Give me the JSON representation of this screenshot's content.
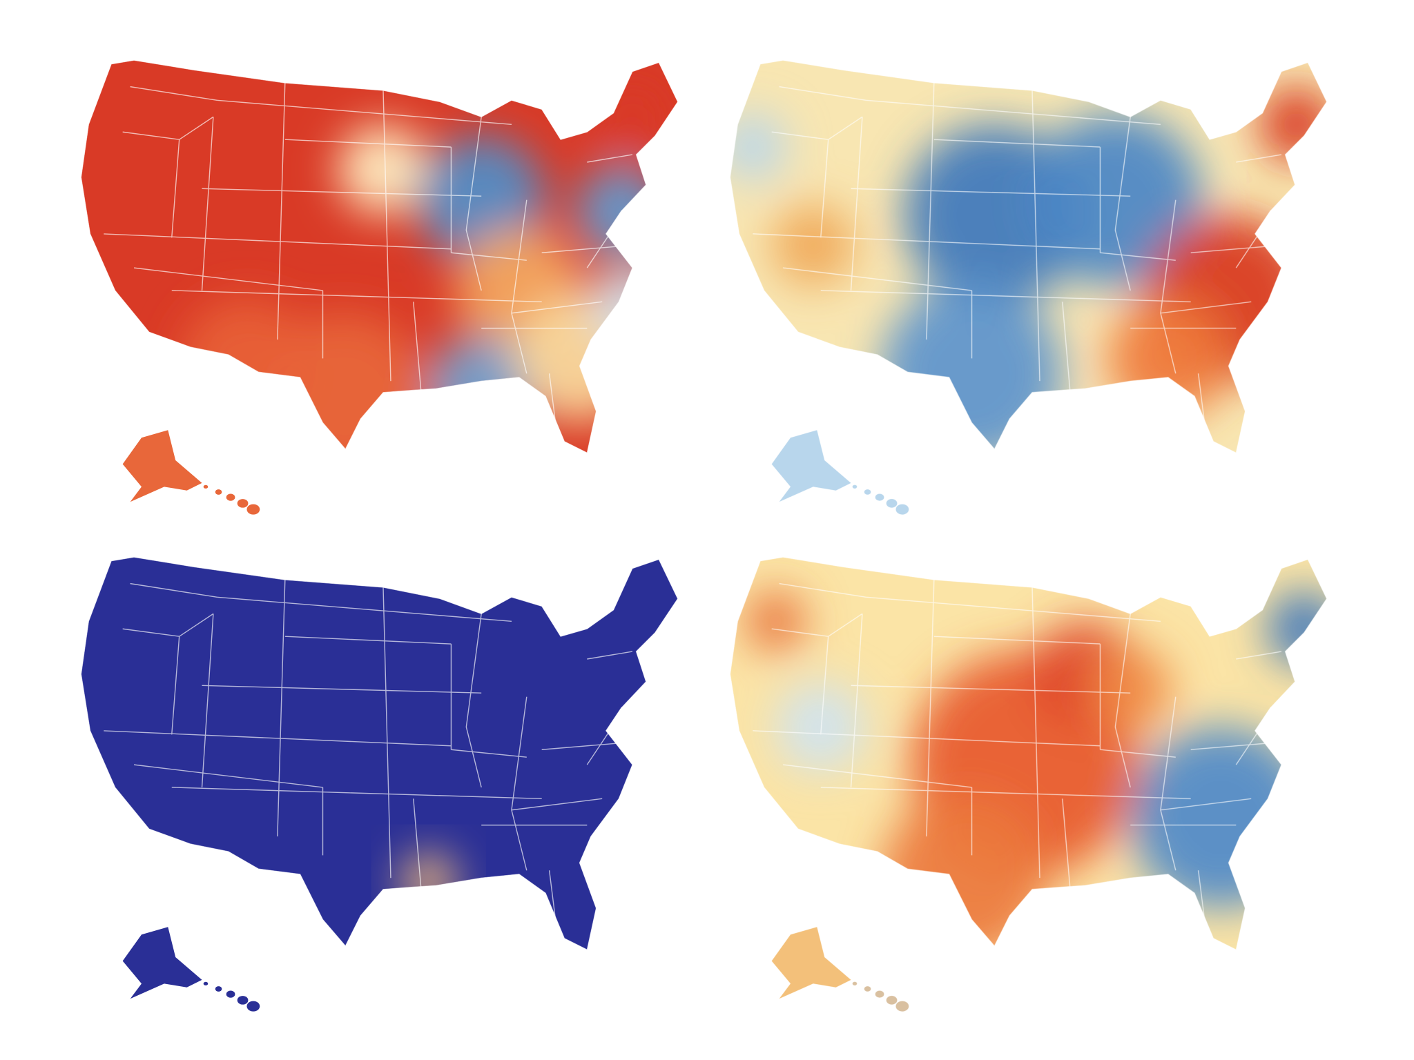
{
  "figure": {
    "panels": [
      {
        "id": "top-left",
        "base": "#d93a26",
        "blobs": [
          {
            "x": 430,
            "y": 170,
            "r": 60,
            "c": "#fff1c4"
          },
          {
            "x": 560,
            "y": 210,
            "r": 85,
            "c": "#4f8fcb"
          },
          {
            "x": 745,
            "y": 225,
            "r": 60,
            "c": "#5f9bd2"
          },
          {
            "x": 610,
            "y": 330,
            "r": 85,
            "c": "#f4a860"
          },
          {
            "x": 560,
            "y": 460,
            "r": 70,
            "c": "#6fa4d4"
          },
          {
            "x": 690,
            "y": 420,
            "r": 85,
            "c": "#f8dca0"
          },
          {
            "x": 760,
            "y": 350,
            "r": 55,
            "c": "#cfe3f0"
          },
          {
            "x": 760,
            "y": 100,
            "r": 50,
            "c": "#d93a26"
          },
          {
            "x": 380,
            "y": 470,
            "r": 110,
            "c": "#e8673a"
          },
          {
            "x": 250,
            "y": 430,
            "r": 90,
            "c": "#e86238"
          }
        ],
        "alaska": "#e8673a",
        "hawaii": "#e8673a"
      },
      {
        "id": "top-right",
        "base": "#f8e6b2",
        "blobs": [
          {
            "x": 380,
            "y": 230,
            "r": 120,
            "c": "#3d78bc"
          },
          {
            "x": 540,
            "y": 210,
            "r": 115,
            "c": "#4b86c6"
          },
          {
            "x": 350,
            "y": 440,
            "r": 120,
            "c": "#5b94cd"
          },
          {
            "x": 690,
            "y": 340,
            "r": 110,
            "c": "#d8381f"
          },
          {
            "x": 610,
            "y": 420,
            "r": 80,
            "c": "#ef7a3a"
          },
          {
            "x": 780,
            "y": 110,
            "r": 50,
            "c": "#d8381f"
          },
          {
            "x": 140,
            "y": 270,
            "r": 55,
            "c": "#f0a858"
          },
          {
            "x": 60,
            "y": 140,
            "r": 45,
            "c": "#b8d6ec"
          }
        ],
        "alaska": "#b8d6ec",
        "hawaii": "#b8d6ec"
      },
      {
        "id": "bottom-left",
        "base": "#2a2f96",
        "blobs": [
          {
            "x": 490,
            "y": 455,
            "r": 38,
            "c": "#f0b87a"
          }
        ],
        "alaska": "#2a2f96",
        "hawaii": "#2a2f96"
      },
      {
        "id": "bottom-right",
        "base": "#fbe4a6",
        "blobs": [
          {
            "x": 420,
            "y": 300,
            "r": 150,
            "c": "#e7592e"
          },
          {
            "x": 340,
            "y": 450,
            "r": 110,
            "c": "#ec7a3c"
          },
          {
            "x": 500,
            "y": 180,
            "r": 70,
            "c": "#e0472a"
          },
          {
            "x": 680,
            "y": 370,
            "r": 120,
            "c": "#4f89c9"
          },
          {
            "x": 790,
            "y": 120,
            "r": 50,
            "c": "#3f78bc"
          },
          {
            "x": 90,
            "y": 110,
            "r": 40,
            "c": "#e8703a"
          },
          {
            "x": 150,
            "y": 250,
            "r": 60,
            "c": "#cfe3f0"
          },
          {
            "x": 560,
            "y": 200,
            "r": 55,
            "c": "#f08a45"
          }
        ],
        "alaska": "#f3c07a",
        "hawaii": "#d9c0a0"
      }
    ]
  }
}
